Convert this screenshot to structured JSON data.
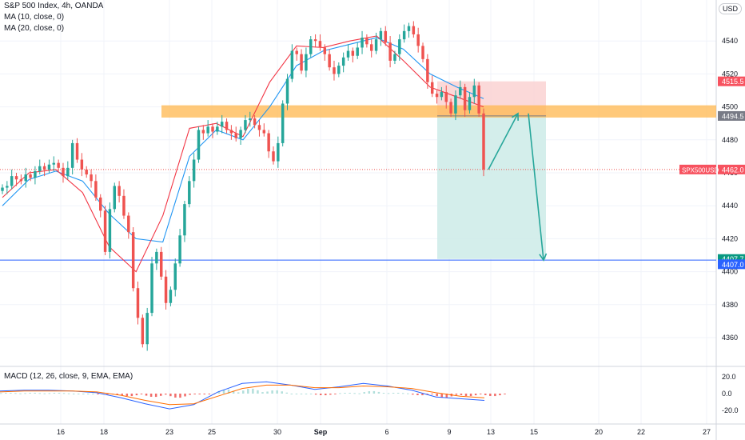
{
  "header": {
    "title": "S&P 500 Index, 4h, OANDA",
    "ma10": "MA (10, close, 0)",
    "ma20": "MA (20, close, 0)",
    "currency": "USD"
  },
  "macd_panel": {
    "title": "MACD (12, 26, close, 9, EMA, EMA)",
    "ticks": [
      "20.0",
      "0.0",
      "-20.0"
    ]
  },
  "price_tags": {
    "stop": "4515.5",
    "entry": "4494.5",
    "symbol": "SPX500USD",
    "last": "4462.0",
    "target": "4407.7",
    "line": "4407.0"
  },
  "colors": {
    "up": "#26a69a",
    "down": "#ef5350",
    "ma10": "#f23645",
    "ma20": "#2196f3",
    "zone": "#ffb74d",
    "tp_zone": "#cfece9",
    "sl_zone": "#fbd5d5",
    "hline": "#2962ff",
    "arrow": "#26a69a"
  },
  "chart_data": {
    "type": "candlestick",
    "symbol": "SPX500USD",
    "timeframe": "4h",
    "y_ticks": [
      4360,
      4380,
      4400,
      4420,
      4440,
      4460,
      4480,
      4500,
      4520,
      4540
    ],
    "x_ticks": [
      "16",
      "18",
      "23",
      "25",
      "30",
      "Sep",
      "6",
      "9",
      "13",
      "15",
      "20",
      "22",
      "27"
    ],
    "ylim": [
      4350,
      4560
    ],
    "candles_close": [
      4451,
      4452,
      4458,
      4456,
      4455,
      4459,
      4457,
      4461,
      4464,
      4462,
      4465,
      4466,
      4463,
      4458,
      4463,
      4478,
      4468,
      4462,
      4459,
      4455,
      4445,
      4437,
      4412,
      4438,
      4452,
      4446,
      4434,
      4424,
      4390,
      4372,
      4356,
      4375,
      4405,
      4412,
      4397,
      4381,
      4389,
      4405,
      4422,
      4441,
      4455,
      4468,
      4486,
      4484,
      4488,
      4485,
      4488,
      4491,
      4486,
      4484,
      4481,
      4486,
      4492,
      4493,
      4489,
      4486,
      4484,
      4473,
      4467,
      4478,
      4502,
      4517,
      4534,
      4532,
      4522,
      4532,
      4541,
      4540,
      4536,
      4532,
      4524,
      4520,
      4525,
      4530,
      4534,
      4531,
      4536,
      4542,
      4538,
      4534,
      4541,
      4546,
      4539,
      4528,
      4532,
      4541,
      4546,
      4549,
      4544,
      4537,
      4529,
      4515,
      4508,
      4506,
      4509,
      4503,
      4496,
      4507,
      4512,
      4498,
      4506,
      4513,
      4496,
      4462
    ],
    "ma10_approx": [
      4445,
      4460,
      4462,
      4448,
      4415,
      4400,
      4434,
      4487,
      4490,
      4482,
      4515,
      4537,
      4536,
      4540,
      4543,
      4528,
      4512,
      4506,
      4500
    ],
    "ma20_approx": [
      4440,
      4456,
      4461,
      4455,
      4435,
      4420,
      4418,
      4470,
      4486,
      4480,
      4500,
      4525,
      4534,
      4538,
      4542,
      4535,
      4520,
      4512,
      4505
    ],
    "resistance_zone": [
      4494.5,
      4500.0
    ],
    "short_position": {
      "entry": 4494.5,
      "stop": 4515.5,
      "target": 4407.7
    },
    "horizontal_line": 4407.0,
    "current_price": 4462.0,
    "projection_arrows": [
      [
        4462,
        4496
      ],
      [
        4496,
        4407
      ]
    ],
    "macd": {
      "ticks": [
        20,
        0,
        -20
      ],
      "ylim": [
        -30,
        28
      ],
      "macd": [
        3,
        4,
        4,
        3,
        1,
        -5,
        -12,
        -18,
        -13,
        2,
        12,
        14,
        10,
        5,
        8,
        12,
        9,
        4,
        -4,
        -6,
        -8
      ],
      "signal": [
        2,
        3,
        3,
        3,
        2,
        -2,
        -8,
        -13,
        -12,
        -3,
        6,
        10,
        10,
        7,
        7,
        9,
        8,
        6,
        1,
        -3,
        -5
      ],
      "histogram": [
        1,
        1,
        1,
        0,
        -1,
        -3,
        -4,
        -5,
        -1,
        5,
        6,
        4,
        0,
        -2,
        1,
        3,
        1,
        -2,
        -5,
        -3,
        -3
      ]
    }
  }
}
